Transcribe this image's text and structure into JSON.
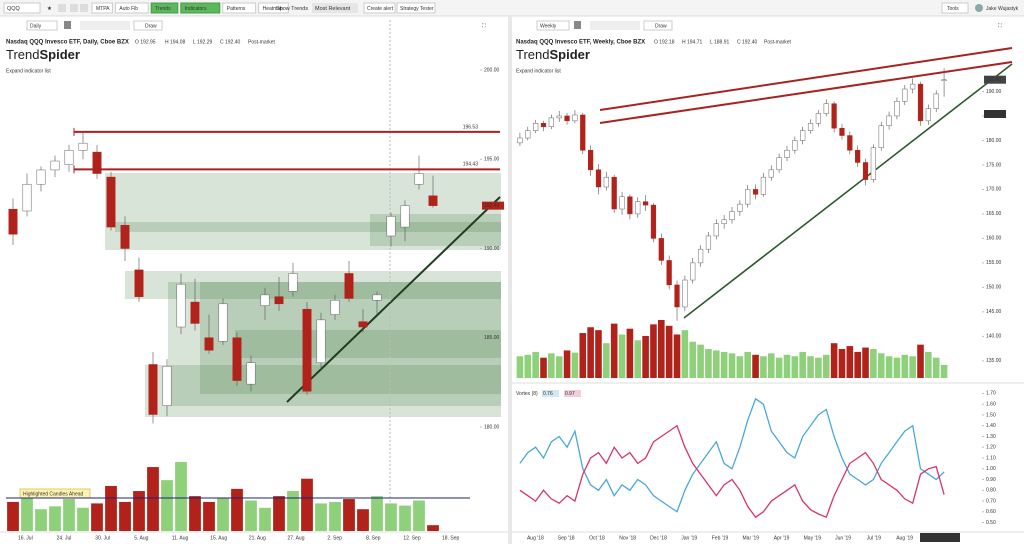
{
  "toolbar": {
    "symbol": "QQQ",
    "buttons": [
      "MTPA",
      "Auto Fib",
      "Trends",
      "Indicators",
      "Patterns",
      "Heatmap"
    ],
    "active": [
      false,
      false,
      true,
      true,
      false,
      false
    ],
    "show_trends": "Show Trends",
    "relevance": "Most Relevant",
    "create_alert": "Create alert",
    "strategy_tester": "Strategy Tester",
    "tools": "Tools",
    "user": "Jake Wujastyk"
  },
  "left_chart": {
    "type": "candlestick",
    "interval": "Daily",
    "draw": "Draw",
    "title": "Nasdaq QQQ Invesco ETF, Daily, Cboe BZX",
    "ohlc": [
      "O 192.95",
      "H 194.08",
      "L 192.29",
      "C 192.40"
    ],
    "status": "Post-market",
    "logo": [
      "Trend",
      "Spider"
    ],
    "expand": "Expand indicator list",
    "highlight": "Highlighted Candles Ahead",
    "price_tag": "192.40",
    "up_color": "#ffffff",
    "down_color": "#b0221a",
    "volume_up_color": "#8fd07a",
    "volume_down_color": "#b0221a",
    "ylim": [
      178.43,
      201.4
    ],
    "yticks": [
      {
        "value": 180,
        "label": "180.00"
      },
      {
        "value": 185,
        "label": "185.00"
      },
      {
        "value": 190,
        "label": "190.00"
      },
      {
        "value": 195,
        "label": "195.00"
      },
      {
        "value": 200,
        "label": "200.00"
      }
    ],
    "levels": [
      196.53,
      194.43
    ],
    "xlabels": [
      "16. Jul",
      "24. Jul",
      "30. Jul",
      "5. Aug",
      "11. Aug",
      "15. Aug",
      "21. Aug",
      "27. Aug",
      "2. Sep",
      "8. Sep",
      "12. Sep",
      "18. Sep"
    ],
    "candles": [
      [
        192.2,
        192.8,
        190.2,
        190.8
      ],
      [
        192.1,
        194.2,
        191.8,
        193.6
      ],
      [
        193.6,
        194.6,
        193.2,
        194.4
      ],
      [
        194.4,
        195.2,
        194.0,
        194.9
      ],
      [
        194.7,
        195.8,
        194.3,
        195.5
      ],
      [
        195.5,
        196.5,
        195.0,
        195.9
      ],
      [
        195.4,
        195.8,
        193.9,
        194.2
      ],
      [
        194.0,
        194.3,
        191.0,
        191.2
      ],
      [
        191.3,
        191.8,
        189.3,
        190.0
      ],
      [
        188.8,
        189.5,
        187.0,
        187.3
      ],
      [
        183.5,
        184.2,
        180.2,
        180.7
      ],
      [
        181.2,
        183.8,
        180.6,
        183.4
      ],
      [
        185.6,
        188.6,
        185.2,
        188.0
      ],
      [
        187.0,
        188.3,
        185.4,
        185.8
      ],
      [
        185.0,
        186.3,
        184.1,
        184.3
      ],
      [
        184.8,
        187.2,
        184.6,
        186.9
      ],
      [
        185.0,
        185.3,
        182.3,
        182.6
      ],
      [
        182.4,
        184.0,
        182.0,
        183.6
      ],
      [
        186.8,
        187.8,
        186.0,
        187.4
      ],
      [
        187.3,
        188.4,
        186.5,
        186.9
      ],
      [
        187.6,
        189.2,
        187.3,
        188.6
      ],
      [
        186.6,
        187.0,
        181.8,
        182.0
      ],
      [
        183.6,
        186.4,
        183.2,
        186.0
      ],
      [
        186.3,
        187.4,
        186.0,
        187.1
      ],
      [
        188.6,
        189.3,
        187.0,
        187.2
      ],
      [
        185.9,
        186.6,
        185.3,
        185.6
      ],
      [
        187.1,
        187.6,
        186.3,
        187.4
      ],
      [
        190.7,
        192.0,
        190.1,
        191.8
      ],
      [
        191.2,
        192.7,
        190.4,
        192.4
      ],
      [
        193.6,
        195.2,
        193.3,
        194.2
      ],
      [
        192.95,
        194.08,
        192.29,
        192.4
      ]
    ],
    "volumes": [
      40,
      52,
      30,
      34,
      44,
      32,
      38,
      62,
      40,
      55,
      88,
      70,
      95,
      48,
      40,
      45,
      58,
      42,
      32,
      48,
      55,
      72,
      38,
      40,
      44,
      30,
      48,
      38,
      35,
      42,
      8
    ]
  },
  "right_chart": {
    "type": "candlestick",
    "interval": "Weekly",
    "draw": "Draw",
    "title": "Nasdaq QQQ Invesco ETF, Weekly, Cboe BZX",
    "ohlc": [
      "O 192.18",
      "H 194.71",
      "L 188.91",
      "C 192.40"
    ],
    "status": "Post-market",
    "logo": [
      "Trend",
      "Spider"
    ],
    "expand": "Expand indicator list",
    "price_tag": "192.40",
    "price_tag_2": "186.18",
    "date_box": "Sep 9th 2019",
    "up_color": "#ffffff",
    "down_color": "#b0221a",
    "volume_up_color": "#8fd07a",
    "volume_down_color": "#b0221a",
    "ylim": [
      131.5,
      195.4
    ],
    "yticks": [
      {
        "value": 135,
        "label": "135.00"
      },
      {
        "value": 140,
        "label": "140.00"
      },
      {
        "value": 145,
        "label": "145.00"
      },
      {
        "value": 150,
        "label": "150.00"
      },
      {
        "value": 155,
        "label": "155.00"
      },
      {
        "value": 160,
        "label": "160.00"
      },
      {
        "value": 165,
        "label": "165.00"
      },
      {
        "value": 170,
        "label": "170.00"
      },
      {
        "value": 175,
        "label": "175.00"
      },
      {
        "value": 180,
        "label": "180.00"
      },
      {
        "value": 185,
        "label": "185.00"
      },
      {
        "value": 190,
        "label": "190.00"
      }
    ],
    "xlabels": [
      "Aug '18",
      "Sep '18",
      "Oct '18",
      "Nov '18",
      "Dec '18",
      "Jan '19",
      "Feb '19",
      "Mar '19",
      "Apr '19",
      "May '19",
      "Jun '19",
      "Jul '19",
      "Aug '19"
    ],
    "candles": [
      [
        179.5,
        181.6,
        178.9,
        180.5
      ],
      [
        180.5,
        182.8,
        180.0,
        182.0
      ],
      [
        182.0,
        184.2,
        181.5,
        183.5
      ],
      [
        183.5,
        184.0,
        181.9,
        182.8
      ],
      [
        182.8,
        185.3,
        182.3,
        184.6
      ],
      [
        184.6,
        186.0,
        183.8,
        185.0
      ],
      [
        185.0,
        185.6,
        183.2,
        184.0
      ],
      [
        184.0,
        186.2,
        183.5,
        185.2
      ],
      [
        185.2,
        185.6,
        177.2,
        178.0
      ],
      [
        178.0,
        179.0,
        172.8,
        174.0
      ],
      [
        174.0,
        175.2,
        169.0,
        170.5
      ],
      [
        170.5,
        173.6,
        169.8,
        172.5
      ],
      [
        172.5,
        173.0,
        165.2,
        166.0
      ],
      [
        166.0,
        169.5,
        164.8,
        168.5
      ],
      [
        168.5,
        169.0,
        163.9,
        165.0
      ],
      [
        165.0,
        168.4,
        164.2,
        167.5
      ],
      [
        167.5,
        168.8,
        165.6,
        166.8
      ],
      [
        166.8,
        167.2,
        159.2,
        160.0
      ],
      [
        160.0,
        161.0,
        154.6,
        155.5
      ],
      [
        155.5,
        156.5,
        149.6,
        150.5
      ],
      [
        150.5,
        151.4,
        143.2,
        146.0
      ],
      [
        146.0,
        152.4,
        145.1,
        151.5
      ],
      [
        151.5,
        156.0,
        150.8,
        155.0
      ],
      [
        155.0,
        158.6,
        154.2,
        157.8
      ],
      [
        157.8,
        161.3,
        157.0,
        160.5
      ],
      [
        160.5,
        163.9,
        159.8,
        163.0
      ],
      [
        163.0,
        164.8,
        162.0,
        163.8
      ],
      [
        163.8,
        166.4,
        163.0,
        165.5
      ],
      [
        165.5,
        167.8,
        164.6,
        167.0
      ],
      [
        167.0,
        170.9,
        166.3,
        170.0
      ],
      [
        170.0,
        171.0,
        168.0,
        169.0
      ],
      [
        169.0,
        173.4,
        168.5,
        172.5
      ],
      [
        172.5,
        174.9,
        171.8,
        174.0
      ],
      [
        174.0,
        177.3,
        173.4,
        176.5
      ],
      [
        176.5,
        178.9,
        175.8,
        178.0
      ],
      [
        178.0,
        180.8,
        177.3,
        180.0
      ],
      [
        180.0,
        182.8,
        179.2,
        182.0
      ],
      [
        182.0,
        184.3,
        181.4,
        183.5
      ],
      [
        183.5,
        186.2,
        182.8,
        185.5
      ],
      [
        185.5,
        188.4,
        184.9,
        187.5
      ],
      [
        187.5,
        188.0,
        181.6,
        182.5
      ],
      [
        182.5,
        183.4,
        180.2,
        181.0
      ],
      [
        181.0,
        181.8,
        177.2,
        178.0
      ],
      [
        178.0,
        179.0,
        174.6,
        175.5
      ],
      [
        175.5,
        176.3,
        170.8,
        172.0
      ],
      [
        172.0,
        179.2,
        171.4,
        178.5
      ],
      [
        178.5,
        183.8,
        177.9,
        183.0
      ],
      [
        183.0,
        185.9,
        182.2,
        185.0
      ],
      [
        185.0,
        188.8,
        184.3,
        188.0
      ],
      [
        188.0,
        191.3,
        187.2,
        190.5
      ],
      [
        190.5,
        192.7,
        189.6,
        191.5
      ],
      [
        191.5,
        192.0,
        183.0,
        184.0
      ],
      [
        184.0,
        187.3,
        183.2,
        186.5
      ],
      [
        186.5,
        190.2,
        185.8,
        189.5
      ],
      [
        192.18,
        194.71,
        188.91,
        192.4
      ]
    ],
    "volumes": [
      30,
      32,
      36,
      28,
      34,
      30,
      38,
      35,
      62,
      70,
      66,
      48,
      75,
      60,
      68,
      52,
      58,
      74,
      80,
      72,
      60,
      66,
      50,
      46,
      40,
      38,
      36,
      34,
      30,
      36,
      32,
      30,
      34,
      28,
      32,
      30,
      36,
      30,
      28,
      32,
      48,
      40,
      44,
      36,
      42,
      40,
      34,
      30,
      28,
      32,
      30,
      46,
      36,
      28,
      18
    ],
    "vortex": {
      "legend": [
        "Vortex (8)",
        "0.76",
        "0.97"
      ],
      "ylim": [
        0.45,
        1.75
      ],
      "yticks": [
        {
          "value": 0.5,
          "label": "0.50"
        },
        {
          "value": 0.6,
          "label": "0.60"
        },
        {
          "value": 0.7,
          "label": "0.70"
        },
        {
          "value": 0.8,
          "label": "0.80"
        },
        {
          "value": 0.9,
          "label": "0.90"
        },
        {
          "value": 1.0,
          "label": "1.00"
        },
        {
          "value": 1.1,
          "label": "1.10"
        },
        {
          "value": 1.2,
          "label": "1.20"
        },
        {
          "value": 1.3,
          "label": "1.30"
        },
        {
          "value": 1.4,
          "label": "1.40"
        },
        {
          "value": 1.5,
          "label": "1.50"
        },
        {
          "value": 1.6,
          "label": "1.60"
        },
        {
          "value": 1.7,
          "label": "1.70"
        }
      ],
      "series": [
        {
          "color": "#4aa8d8",
          "values": [
            1.05,
            1.15,
            1.2,
            1.1,
            1.25,
            1.3,
            1.2,
            1.35,
            1.0,
            0.85,
            0.8,
            0.9,
            0.75,
            0.85,
            0.8,
            0.9,
            0.85,
            0.75,
            0.7,
            0.65,
            0.6,
            0.8,
            0.95,
            1.05,
            1.15,
            1.25,
            1.05,
            1.0,
            1.2,
            1.45,
            1.65,
            1.6,
            1.35,
            1.25,
            1.15,
            1.1,
            1.3,
            1.4,
            1.5,
            1.55,
            1.3,
            1.1,
            0.95,
            0.9,
            0.85,
            0.9,
            1.05,
            1.15,
            1.25,
            1.35,
            1.4,
            1.0,
            0.95,
            0.9,
            0.97
          ]
        },
        {
          "color": "#d6336c",
          "values": [
            0.8,
            0.75,
            0.7,
            0.8,
            0.72,
            0.68,
            0.75,
            0.7,
            0.95,
            1.1,
            1.15,
            1.05,
            1.2,
            1.1,
            1.15,
            1.05,
            1.1,
            1.25,
            1.3,
            1.35,
            1.4,
            1.2,
            1.05,
            0.95,
            0.85,
            0.75,
            0.85,
            0.9,
            0.8,
            0.65,
            0.55,
            0.6,
            0.7,
            0.75,
            0.8,
            0.85,
            0.7,
            0.62,
            0.58,
            0.55,
            0.75,
            0.9,
            1.05,
            1.1,
            1.15,
            1.05,
            0.9,
            0.85,
            0.8,
            0.72,
            0.68,
            0.95,
            1.0,
            1.02,
            0.76
          ]
        }
      ]
    }
  }
}
